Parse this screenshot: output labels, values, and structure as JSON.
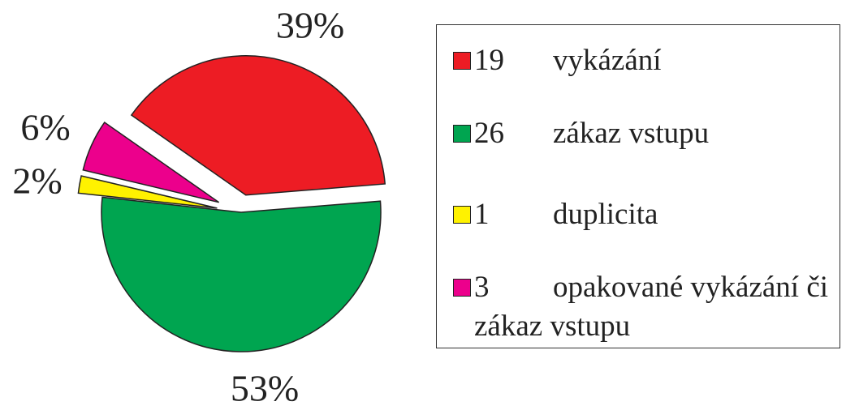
{
  "chart_data": {
    "type": "pie",
    "categories": [
      "vykázání",
      "zákaz vstupu",
      "duplicita",
      "opakované vykázání či zákaz vstupu"
    ],
    "values": [
      39,
      53,
      2,
      6
    ],
    "value_labels": [
      "39%",
      "53%",
      "2%",
      "6%"
    ],
    "counts": [
      19,
      26,
      1,
      3
    ],
    "colors": [
      "#ed1c24",
      "#00a550",
      "#fff200",
      "#ec008c"
    ],
    "legend": "right"
  }
}
